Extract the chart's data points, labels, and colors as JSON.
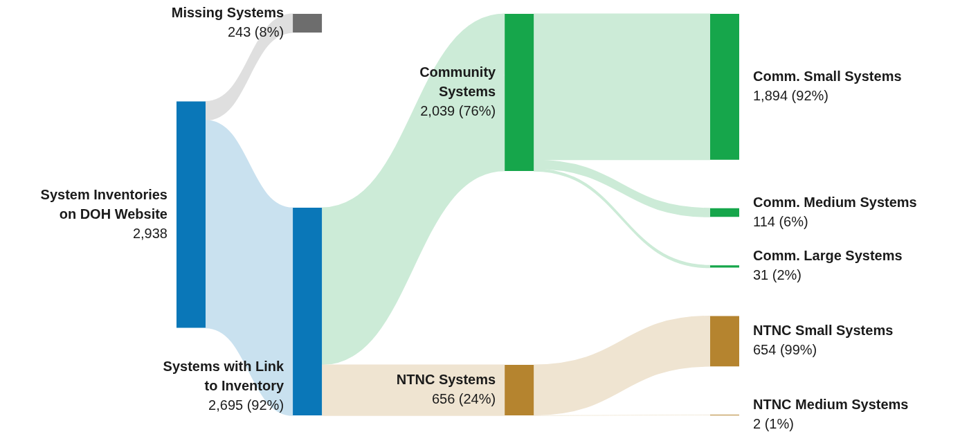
{
  "chart_data": {
    "type": "other",
    "categories": [
      "System Inventories on DOH Website",
      "Missing Systems",
      "Systems with Link to Inventory",
      "Community Systems",
      "NTNC Systems",
      "Comm. Small Systems",
      "Comm. Medium Systems",
      "Comm. Large Systems",
      "NTNC Small Systems",
      "NTNC Medium Systems"
    ],
    "values": [
      2938,
      243,
      2695,
      2039,
      656,
      1894,
      114,
      31,
      654,
      2
    ],
    "value_labels": [
      "2,938",
      "243 (8%)",
      "2,695 (92%)",
      "2,039 (76%)",
      "656 (24%)",
      "1,894 (92%)",
      "114 (6%)",
      "31 (2%)",
      "654 (99%)",
      "2 (1%)"
    ],
    "colors": [
      "#0a77b8",
      "#6d6d6d",
      "#0a77b8",
      "#16a64b",
      "#b5842f",
      "#16a64b",
      "#16a64b",
      "#16a64b",
      "#b5842f",
      "#b5842f"
    ]
  }
}
